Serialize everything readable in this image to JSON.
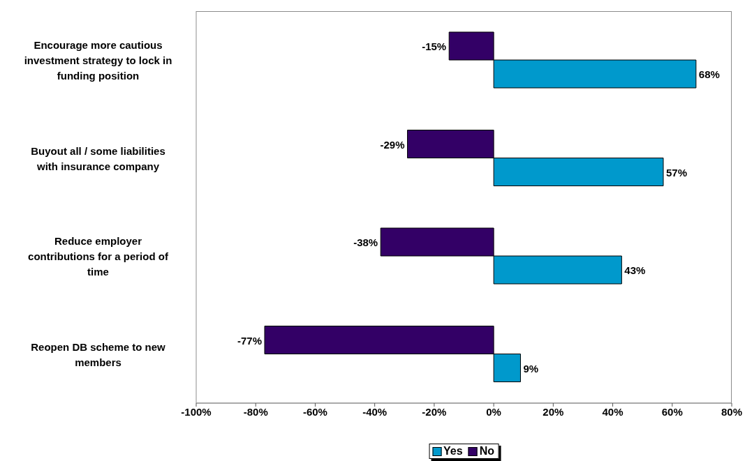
{
  "chart_data": {
    "type": "bar",
    "orientation": "horizontal",
    "categories": [
      "Encourage more cautious\ninvestment strategy to lock in\nfunding position",
      "Buyout all / some liabilities\nwith insurance company",
      "Reduce employer\ncontributions for a period of\ntime",
      "Reopen DB scheme to new\nmembers"
    ],
    "series": [
      {
        "name": "Yes",
        "color": "#0099cc",
        "values": [
          68,
          57,
          43,
          9
        ],
        "value_labels": [
          "68%",
          "57%",
          "43%",
          "9%"
        ]
      },
      {
        "name": "No",
        "color": "#330066",
        "values": [
          -15,
          -29,
          -38,
          -77
        ],
        "value_labels": [
          "-15%",
          "-29%",
          "-38%",
          "-77%"
        ]
      }
    ],
    "xlim": [
      -100,
      80
    ],
    "xticks": [
      {
        "value": -100,
        "label": "-100%"
      },
      {
        "value": -80,
        "label": "-80%"
      },
      {
        "value": -60,
        "label": "-60%"
      },
      {
        "value": -40,
        "label": "-40%"
      },
      {
        "value": -20,
        "label": "-20%"
      },
      {
        "value": 0,
        "label": "0%"
      },
      {
        "value": 20,
        "label": "20%"
      },
      {
        "value": 40,
        "label": "40%"
      },
      {
        "value": 60,
        "label": "60%"
      },
      {
        "value": 80,
        "label": "80%"
      }
    ],
    "legend": "bottom"
  }
}
